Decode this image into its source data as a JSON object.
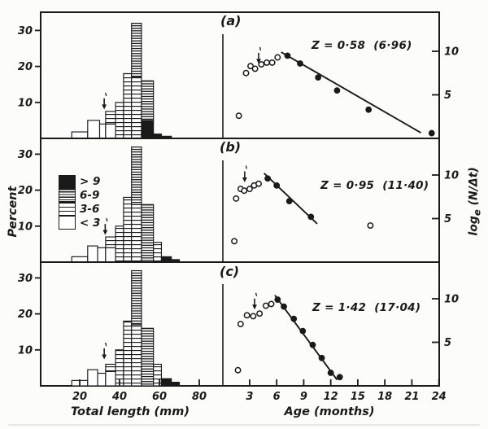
{
  "figure": {
    "percent_label": "Percent",
    "right_label_log": "log",
    "right_label_sub": "e",
    "right_label_rest": " (N/Δt)",
    "xlabel_length": "Total length (mm)",
    "xlabel_age": "Age (months)",
    "ink_color": "#1a1a1a",
    "bg_color": "#fcfcfa"
  },
  "legend": {
    "items": [
      {
        "label": "> 9",
        "pattern": "solid"
      },
      {
        "label": "6-9",
        "pattern": "dense"
      },
      {
        "label": "3-6",
        "pattern": "medium"
      },
      {
        "label": "< 3",
        "pattern": "open"
      }
    ]
  },
  "chart_data": [
    {
      "panel": "(a)",
      "z_annotation": "Z = 0·58  (6·96)",
      "histogram": {
        "type": "bar",
        "xlabel": "Total length (mm)",
        "ylabel": "Percent",
        "xlim": [
          0,
          92
        ],
        "ylim": [
          0,
          35
        ],
        "xticks": [
          20,
          40,
          60,
          80
        ],
        "yticks": [
          10,
          20,
          30
        ],
        "arrow": {
          "mm": 32.3,
          "tip_pct": 8.4
        },
        "bars": [
          {
            "x0": 16,
            "x1": 24,
            "segs": [
              [
                "lt3",
                1.8
              ]
            ]
          },
          {
            "x0": 24,
            "x1": 30,
            "segs": [
              [
                "lt3",
                5
              ]
            ]
          },
          {
            "x0": 30,
            "x1": 33,
            "segs": [
              [
                "lt3",
                4
              ]
            ]
          },
          {
            "x0": 33,
            "x1": 38,
            "segs": [
              [
                "lt3",
                4
              ],
              [
                "m36",
                3.5
              ]
            ]
          },
          {
            "x0": 38,
            "x1": 42,
            "segs": [
              [
                "m36",
                10
              ]
            ]
          },
          {
            "x0": 42,
            "x1": 46,
            "segs": [
              [
                "m36",
                18
              ]
            ]
          },
          {
            "x0": 46,
            "x1": 51,
            "segs": [
              [
                "m36",
                17
              ],
              [
                "m69",
                15
              ]
            ]
          },
          {
            "x0": 51,
            "x1": 57,
            "segs": [
              [
                "gt9",
                5
              ],
              [
                "m69",
                11
              ]
            ]
          },
          {
            "x0": 57,
            "x1": 61,
            "segs": [
              [
                "gt9",
                1.2
              ]
            ]
          },
          {
            "x0": 61,
            "x1": 66,
            "segs": [
              [
                "gt9",
                0.6
              ]
            ]
          }
        ]
      },
      "catch_curve": {
        "type": "scatter",
        "xlabel": "Age (months)",
        "ylabel": "log_e(N/Δt)",
        "xlim": [
          0,
          24
        ],
        "ylim": [
          0,
          14.5
        ],
        "xticks": [
          3,
          6,
          9,
          12,
          15,
          18,
          21,
          24
        ],
        "yticks": [
          5,
          10
        ],
        "arrow": {
          "age": 4.0,
          "tip_val": 8.7
        },
        "open_points": [
          [
            1.8,
            2.6
          ],
          [
            2.6,
            7.5
          ],
          [
            3.1,
            8.3
          ],
          [
            3.6,
            8.0
          ],
          [
            4.3,
            8.5
          ],
          [
            4.9,
            8.7
          ],
          [
            5.5,
            8.7
          ],
          [
            6.1,
            9.3
          ]
        ],
        "filled_points": [
          [
            7.2,
            9.5
          ],
          [
            8.6,
            8.6
          ],
          [
            10.6,
            7.0
          ],
          [
            12.7,
            5.5
          ],
          [
            16.2,
            3.3
          ],
          [
            23.2,
            0.6
          ]
        ],
        "regression_line": {
          "x1": 6.5,
          "y1": 9.9,
          "x2": 22.0,
          "y2": 0.65
        }
      }
    },
    {
      "panel": "(b)",
      "z_annotation": "Z = 0·95  (11·40)",
      "histogram": {
        "type": "bar",
        "xlabel": "Total length (mm)",
        "ylabel": "Percent",
        "xlim": [
          0,
          92
        ],
        "ylim": [
          0,
          35
        ],
        "xticks": [
          20,
          40,
          60,
          80
        ],
        "yticks": [
          10,
          20,
          30
        ],
        "arrow": {
          "mm": 32.8,
          "tip_pct": 7.9
        },
        "bars": [
          {
            "x0": 16,
            "x1": 24,
            "segs": [
              [
                "lt3",
                1.5
              ]
            ]
          },
          {
            "x0": 24,
            "x1": 29,
            "segs": [
              [
                "lt3",
                4.5
              ]
            ]
          },
          {
            "x0": 29,
            "x1": 33,
            "segs": [
              [
                "lt3",
                4
              ]
            ]
          },
          {
            "x0": 33,
            "x1": 38,
            "segs": [
              [
                "lt3",
                4
              ],
              [
                "m36",
                3
              ]
            ]
          },
          {
            "x0": 38,
            "x1": 42,
            "segs": [
              [
                "m36",
                10
              ]
            ]
          },
          {
            "x0": 42,
            "x1": 46,
            "segs": [
              [
                "m36",
                18
              ]
            ]
          },
          {
            "x0": 46,
            "x1": 51,
            "segs": [
              [
                "m36",
                16
              ],
              [
                "m69",
                16
              ]
            ]
          },
          {
            "x0": 51,
            "x1": 57,
            "segs": [
              [
                "m69",
                16
              ]
            ]
          },
          {
            "x0": 57,
            "x1": 61,
            "segs": [
              [
                "m36",
                5.5
              ]
            ]
          },
          {
            "x0": 61,
            "x1": 66,
            "segs": [
              [
                "gt9",
                1.5
              ]
            ]
          },
          {
            "x0": 66,
            "x1": 70,
            "segs": [
              [
                "gt9",
                0.7
              ]
            ]
          }
        ]
      },
      "catch_curve": {
        "type": "scatter",
        "xlabel": "Age (months)",
        "ylabel": "log_e(N/Δt)",
        "xlim": [
          0,
          24
        ],
        "ylim": [
          0,
          14.5
        ],
        "xticks": [
          3,
          6,
          9,
          12,
          15,
          18,
          21,
          24
        ],
        "yticks": [
          5,
          10
        ],
        "arrow": {
          "age": 2.45,
          "tip_val": 9.3
        },
        "open_points": [
          [
            1.3,
            2.4
          ],
          [
            1.5,
            7.3
          ],
          [
            2.0,
            8.4
          ],
          [
            2.4,
            8.2
          ],
          [
            3.0,
            8.4
          ],
          [
            3.5,
            8.8
          ],
          [
            4.0,
            9.0
          ],
          [
            16.4,
            4.2
          ]
        ],
        "filled_points": [
          [
            5.0,
            9.6
          ],
          [
            6.0,
            8.8
          ],
          [
            7.4,
            7.0
          ],
          [
            9.8,
            5.2
          ]
        ],
        "regression_line": {
          "x1": 4.6,
          "y1": 10.2,
          "x2": 10.5,
          "y2": 4.4
        }
      }
    },
    {
      "panel": "(c)",
      "z_annotation": "Z = 1·42  (17·04)",
      "histogram": {
        "type": "bar",
        "xlabel": "Total length (mm)",
        "ylabel": "Percent",
        "xlim": [
          0,
          92
        ],
        "ylim": [
          0,
          35
        ],
        "xticks": [
          20,
          40,
          60,
          80
        ],
        "yticks": [
          10,
          20,
          30
        ],
        "arrow": {
          "mm": 32.3,
          "tip_pct": 7.7
        },
        "bars": [
          {
            "x0": 16,
            "x1": 24,
            "segs": [
              [
                "lt3",
                1.5
              ]
            ]
          },
          {
            "x0": 24,
            "x1": 29,
            "segs": [
              [
                "lt3",
                4.5
              ]
            ]
          },
          {
            "x0": 29,
            "x1": 33,
            "segs": [
              [
                "lt3",
                3.5
              ]
            ]
          },
          {
            "x0": 33,
            "x1": 38,
            "segs": [
              [
                "lt3",
                4
              ],
              [
                "m36",
                2
              ]
            ]
          },
          {
            "x0": 38,
            "x1": 42,
            "segs": [
              [
                "m36",
                10
              ]
            ]
          },
          {
            "x0": 42,
            "x1": 46,
            "segs": [
              [
                "m36",
                18
              ]
            ]
          },
          {
            "x0": 46,
            "x1": 51,
            "segs": [
              [
                "m36",
                17
              ],
              [
                "m69",
                15
              ]
            ]
          },
          {
            "x0": 51,
            "x1": 57,
            "segs": [
              [
                "m69",
                16
              ]
            ]
          },
          {
            "x0": 57,
            "x1": 61,
            "segs": [
              [
                "m36",
                6
              ]
            ]
          },
          {
            "x0": 61,
            "x1": 66,
            "segs": [
              [
                "gt9",
                2
              ]
            ]
          },
          {
            "x0": 66,
            "x1": 70,
            "segs": [
              [
                "gt9",
                1
              ]
            ]
          }
        ]
      },
      "catch_curve": {
        "type": "scatter",
        "xlabel": "Age (months)",
        "ylabel": "log_e(N/Δt)",
        "xlim": [
          0,
          24
        ],
        "ylim": [
          0,
          14.5
        ],
        "xticks": [
          3,
          6,
          9,
          12,
          15,
          18,
          21,
          24
        ],
        "yticks": [
          5,
          10
        ],
        "arrow": {
          "age": 3.55,
          "tip_val": 8.9
        },
        "open_points": [
          [
            1.7,
            1.8
          ],
          [
            2.0,
            7.1
          ],
          [
            2.7,
            8.1
          ],
          [
            3.4,
            8.0
          ],
          [
            4.1,
            8.3
          ],
          [
            4.8,
            9.2
          ],
          [
            5.4,
            9.4
          ]
        ],
        "filled_points": [
          [
            6.1,
            9.9
          ],
          [
            6.8,
            9.1
          ],
          [
            7.9,
            7.7
          ],
          [
            8.9,
            6.3
          ],
          [
            10.0,
            4.7
          ],
          [
            11.0,
            3.2
          ],
          [
            12.0,
            1.5
          ],
          [
            13.0,
            1.0
          ]
        ],
        "regression_line": {
          "x1": 5.8,
          "y1": 10.4,
          "x2": 12.7,
          "y2": 0.7
        }
      }
    }
  ]
}
